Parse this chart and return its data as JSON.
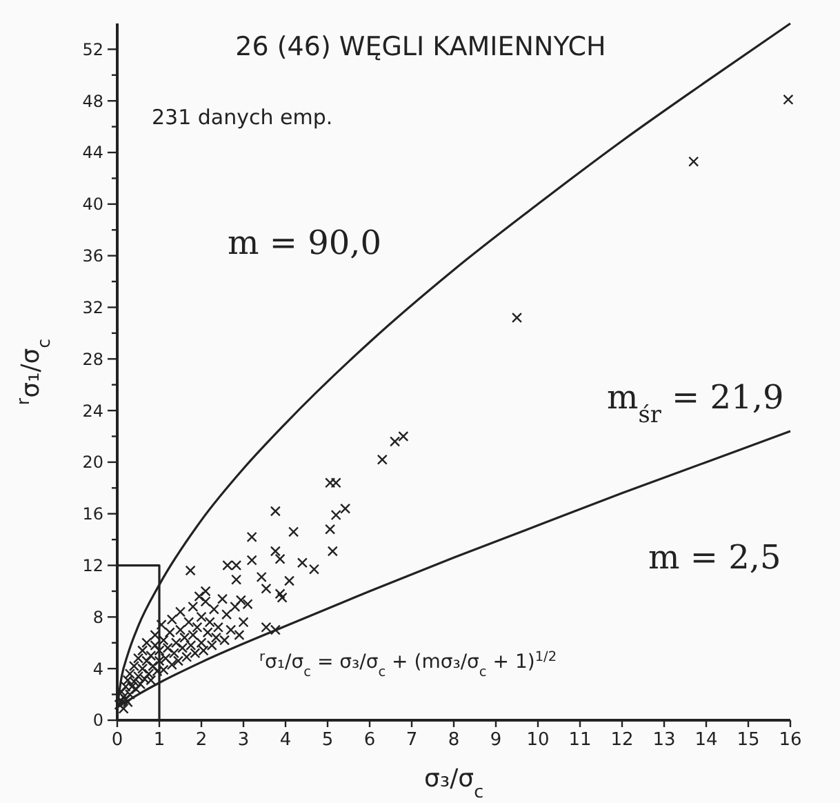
{
  "chart_data": {
    "type": "scatter",
    "title": "26 (46) WĘGLI KAMIENNYCH",
    "xlabel": "σ₃/σ$_{c}$",
    "ylabel": "$^{r}$σ₁/σ$_{c}$",
    "annotations": [
      "231 danych emp.",
      "m = 90,0",
      "m$_{śr}$ = 21,9",
      "m = 2,5",
      "$^{r}$σ₁/σ$_{c}$ = σ₃/σ$_{c}$ + (mσ₃/σ$_{c}$ + 1)$^{1/2}$"
    ],
    "xlim": [
      0,
      16
    ],
    "ylim": [
      0,
      54
    ],
    "xticks": [
      0,
      1,
      2,
      3,
      4,
      5,
      6,
      7,
      8,
      9,
      10,
      11,
      12,
      13,
      14,
      15,
      16
    ],
    "yticks": [
      0,
      {
        "value": 2,
        "label": null
      },
      4,
      {
        "value": 6,
        "label": null
      },
      8,
      {
        "value": 10,
        "label": null
      },
      12,
      {
        "value": 14,
        "label": null
      },
      16,
      {
        "value": 18,
        "label": null
      },
      20,
      {
        "value": 22,
        "label": null
      },
      24,
      {
        "value": 26,
        "label": null
      },
      28,
      {
        "value": 30,
        "label": null
      },
      32,
      {
        "value": 34,
        "label": null
      },
      36,
      {
        "value": 38,
        "label": null
      },
      40,
      {
        "value": 42,
        "label": null
      },
      44,
      {
        "value": 46,
        "label": null
      },
      48,
      {
        "value": 50,
        "label": null
      },
      52
    ],
    "series": [
      {
        "color": "#222222",
        "marker": "cross",
        "x": [
          0.05,
          0.1,
          0.1,
          0.15,
          0.2,
          0.2,
          0.25,
          0.3,
          0.3,
          0.35,
          0.4,
          0.4,
          0.45,
          0.5,
          0.5,
          0.55,
          0.6,
          0.6,
          0.65,
          0.7,
          0.7,
          0.75,
          0.8,
          0.8,
          0.85,
          0.9,
          0.9,
          0.95,
          1.0,
          1.0,
          1.05,
          1.1,
          1.1,
          1.15,
          1.2,
          1.25,
          1.3,
          1.3,
          1.35,
          1.4,
          1.45,
          1.5,
          1.5,
          1.55,
          1.6,
          1.65,
          1.7,
          1.75,
          1.8,
          1.8,
          1.85,
          1.9,
          1.95,
          2.0,
          2.0,
          2.05,
          2.1,
          2.15,
          2.2,
          2.25,
          2.3,
          2.35,
          2.4,
          2.5,
          2.55,
          2.6,
          2.7,
          2.8,
          2.9,
          3.0,
          0.15,
          0.25,
          2.1,
          1.74,
          3.76,
          2.62,
          2.83,
          3.2,
          4.19,
          5.06,
          5.2,
          5.42,
          5.2,
          5.06,
          5.12,
          3.76,
          3.87,
          3.2,
          4.4,
          4.68,
          2.83,
          3.43,
          3.54,
          4.09,
          3.87,
          3.92,
          2.94,
          3.1,
          3.54,
          3.76,
          6.3,
          6.6,
          6.8,
          9.5,
          13.7,
          15.95
        ],
        "values": [
          1.2,
          1.5,
          2.2,
          1.8,
          2.6,
          1.6,
          3.1,
          2.0,
          3.6,
          2.6,
          4.2,
          3.0,
          2.4,
          3.4,
          4.8,
          2.8,
          4.0,
          5.4,
          3.2,
          4.6,
          6.0,
          3.6,
          5.0,
          3.1,
          4.2,
          5.8,
          6.6,
          3.8,
          4.6,
          5.4,
          7.4,
          3.9,
          6.2,
          4.8,
          5.6,
          6.8,
          4.3,
          7.8,
          5.2,
          6.0,
          4.6,
          7.0,
          8.4,
          5.6,
          6.4,
          4.9,
          7.6,
          5.8,
          8.8,
          6.6,
          5.2,
          7.2,
          9.6,
          6.0,
          8.0,
          5.4,
          9.2,
          6.8,
          7.6,
          5.8,
          8.6,
          6.4,
          7.2,
          9.4,
          6.2,
          8.2,
          7.0,
          8.8,
          6.6,
          7.6,
          0.9,
          1.4,
          10.0,
          11.6,
          16.2,
          12.0,
          12.0,
          14.2,
          14.6,
          18.4,
          18.4,
          16.4,
          15.9,
          14.8,
          13.1,
          13.1,
          12.5,
          12.4,
          12.2,
          11.7,
          10.9,
          11.1,
          10.2,
          10.8,
          9.8,
          9.5,
          9.3,
          9.0,
          7.2,
          7.0,
          20.2,
          21.6,
          22.0,
          31.2,
          43.3,
          48.1
        ]
      },
      {
        "type": "line",
        "color": "#222222",
        "x": [
          0,
          0.1,
          0.25,
          0.5,
          1,
          2,
          3,
          4,
          6,
          8,
          10,
          12,
          14,
          16
        ],
        "values": [
          1,
          3.3,
          5.1,
          7.3,
          10.5,
          15.5,
          19.5,
          23.0,
          29.3,
          34.9,
          40.0,
          44.9,
          49.5,
          54.0
        ]
      },
      {
        "type": "line",
        "color": "#222222",
        "x": [
          0,
          0.5,
          1,
          2,
          4,
          6,
          8,
          10,
          12,
          14,
          16
        ],
        "values": [
          1,
          2.0,
          2.9,
          4.5,
          7.3,
          10.0,
          12.6,
          15.1,
          17.6,
          20.0,
          22.4
        ]
      },
      {
        "type": "line",
        "color": "#222222",
        "x": [
          0,
          1,
          1
        ],
        "values": [
          12,
          12,
          0
        ]
      }
    ]
  }
}
